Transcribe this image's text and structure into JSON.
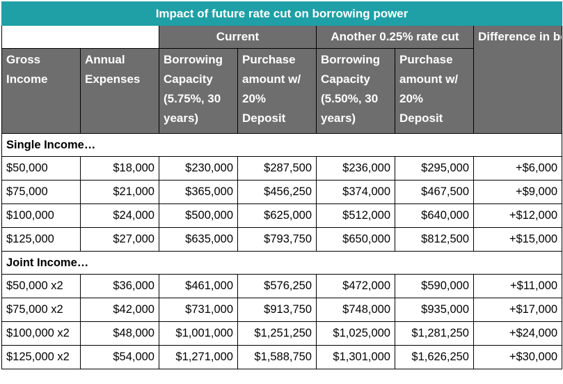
{
  "title": "Impact of future rate cut on borrowing power",
  "groups": {
    "current": "Current",
    "another": "Another 0.25% rate cut",
    "difference": "Difference in borrowing power"
  },
  "headers": {
    "gross_income": "Gross Income",
    "annual_expenses": "Annual Expenses",
    "borrowing_current": "Borrowing Capacity (5.75%, 30 years)",
    "purchase_current": "Purchase amount w/ 20% Deposit",
    "borrowing_cut": "Borrowing Capacity (5.50%, 30 years)",
    "purchase_cut": "Purchase amount w/ 20% Deposit"
  },
  "sections": [
    {
      "label": "Single Income…",
      "rows": [
        {
          "income": "$50,000",
          "expenses": "$18,000",
          "borrow_cur": "$230,000",
          "purchase_cur": "$287,500",
          "borrow_cut": "$236,000",
          "purchase_cut": "$295,000",
          "diff": "+$6,000"
        },
        {
          "income": "$75,000",
          "expenses": "$21,000",
          "borrow_cur": "$365,000",
          "purchase_cur": "$456,250",
          "borrow_cut": "$374,000",
          "purchase_cut": "$467,500",
          "diff": "+$9,000"
        },
        {
          "income": "$100,000",
          "expenses": "$24,000",
          "borrow_cur": "$500,000",
          "purchase_cur": "$625,000",
          "borrow_cut": "$512,000",
          "purchase_cut": "$640,000",
          "diff": "+$12,000"
        },
        {
          "income": "$125,000",
          "expenses": "$27,000",
          "borrow_cur": "$635,000",
          "purchase_cur": "$793,750",
          "borrow_cut": "$650,000",
          "purchase_cut": "$812,500",
          "diff": "+$15,000"
        }
      ]
    },
    {
      "label": "Joint Income…",
      "rows": [
        {
          "income": "$50,000 x2",
          "expenses": "$36,000",
          "borrow_cur": "$461,000",
          "purchase_cur": "$576,250",
          "borrow_cut": "$472,000",
          "purchase_cut": "$590,000",
          "diff": "+$11,000"
        },
        {
          "income": "$75,000 x2",
          "expenses": "$42,000",
          "borrow_cur": "$731,000",
          "purchase_cur": "$913,750",
          "borrow_cut": "$748,000",
          "purchase_cut": "$935,000",
          "diff": "+$17,000"
        },
        {
          "income": "$100,000 x2",
          "expenses": "$48,000",
          "borrow_cur": "$1,001,000",
          "purchase_cur": "$1,251,250",
          "borrow_cut": "$1,025,000",
          "purchase_cut": "$1,281,250",
          "diff": "+$24,000"
        },
        {
          "income": "$125,000 x2",
          "expenses": "$54,000",
          "borrow_cur": "$1,271,000",
          "purchase_cur": "$1,588,750",
          "borrow_cut": "$1,301,000",
          "purchase_cut": "$1,626,250",
          "diff": "+$30,000"
        }
      ]
    }
  ]
}
